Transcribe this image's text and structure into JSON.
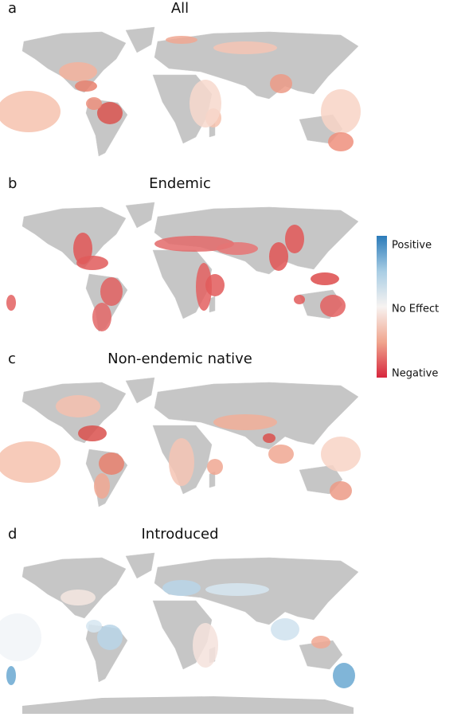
{
  "panels": [
    {
      "letter": "a",
      "title": "All"
    },
    {
      "letter": "b",
      "title": "Endemic"
    },
    {
      "letter": "c",
      "title": "Non-endemic native"
    },
    {
      "letter": "d",
      "title": "Introduced"
    }
  ],
  "legend": {
    "labels": [
      "Positive",
      "No Effect",
      "Negative"
    ]
  }
}
